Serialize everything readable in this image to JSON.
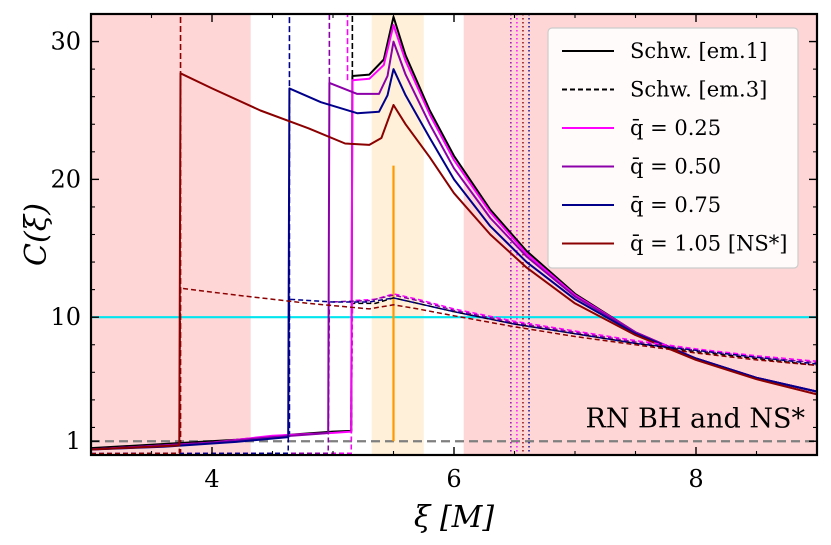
{
  "chart_data": {
    "type": "line",
    "xlabel": "ξ [M]",
    "ylabel": "C(ξ)",
    "xlim": [
      3.0,
      9.0
    ],
    "ylim": [
      0.0,
      32.0
    ],
    "xticks": [
      {
        "v": 4,
        "label": "4"
      },
      {
        "v": 6,
        "label": "6"
      },
      {
        "v": 8,
        "label": "8"
      }
    ],
    "yticks": [
      {
        "v": 1,
        "label": "1"
      },
      {
        "v": 10,
        "label": "10"
      },
      {
        "v": 20,
        "label": "20"
      },
      {
        "v": 30,
        "label": "30"
      }
    ],
    "annotation": "RN BH and NS*",
    "shaded_regions": [
      {
        "x0": 3.0,
        "x1": 4.32,
        "color": "#ffd6d6"
      },
      {
        "x0": 6.08,
        "x1": 9.0,
        "color": "#ffd6d6"
      },
      {
        "x0": 5.32,
        "x1": 5.75,
        "color": "#fff1d9"
      }
    ],
    "reference_lines": [
      {
        "axis": "y",
        "value": 10,
        "color": "#00e5ee",
        "style": "solid"
      },
      {
        "axis": "y",
        "value": 1,
        "color": "#7f7f7f",
        "style": "dashed"
      },
      {
        "axis": "x",
        "value": 5.5,
        "color": "#ff9900",
        "style": "solid",
        "from": 1,
        "to": 21
      }
    ],
    "legend": {
      "position": "top-right",
      "entries": [
        {
          "label": "Schw. [em.1]",
          "color": "#000000",
          "dash": "solid"
        },
        {
          "label": "Schw. [em.3]",
          "color": "#000000",
          "dash": "dashed"
        },
        {
          "label": "q̄ = 0.25",
          "color": "#ff00ff",
          "dash": "solid"
        },
        {
          "label": "q̄ = 0.50",
          "color": "#8b00a8",
          "dash": "solid"
        },
        {
          "label": "q̄ = 0.75",
          "color": "#00008b",
          "dash": "solid"
        },
        {
          "label": "q̄ = 1.05 [NS*]",
          "color": "#8b0000",
          "dash": "solid"
        }
      ]
    },
    "series": [
      {
        "color": "#000000",
        "dash": "solid",
        "points": [
          [
            3.0,
            0.5
          ],
          [
            3.6,
            0.8
          ],
          [
            4.2,
            1.1
          ],
          [
            4.7,
            1.5
          ],
          [
            5.0,
            1.7
          ],
          [
            5.15,
            1.75
          ],
          [
            5.16,
            27.5
          ],
          [
            5.3,
            27.6
          ],
          [
            5.42,
            28.7
          ],
          [
            5.5,
            31.8
          ],
          [
            5.6,
            29.0
          ],
          [
            5.8,
            25.0
          ],
          [
            6.0,
            21.7
          ],
          [
            6.3,
            17.8
          ],
          [
            6.6,
            14.8
          ],
          [
            7.0,
            11.7
          ],
          [
            7.5,
            8.9
          ],
          [
            8.0,
            7.0
          ],
          [
            8.5,
            5.6
          ],
          [
            9.0,
            4.6
          ]
        ]
      },
      {
        "color": "#ff00ff",
        "dash": "solid",
        "points": [
          [
            3.0,
            0.4
          ],
          [
            4.0,
            0.9
          ],
          [
            4.5,
            1.4
          ],
          [
            5.0,
            1.6
          ],
          [
            5.15,
            1.7
          ],
          [
            5.16,
            27.2
          ],
          [
            5.3,
            27.3
          ],
          [
            5.42,
            28.3
          ],
          [
            5.5,
            31.2
          ],
          [
            5.6,
            28.6
          ],
          [
            5.8,
            24.7
          ],
          [
            6.0,
            21.4
          ],
          [
            6.3,
            17.6
          ],
          [
            6.6,
            14.6
          ],
          [
            7.0,
            11.6
          ],
          [
            7.5,
            8.9
          ],
          [
            8.0,
            7.0
          ],
          [
            8.5,
            5.6
          ],
          [
            9.0,
            4.6
          ]
        ]
      },
      {
        "color": "#8b00a8",
        "dash": "solid",
        "points": [
          [
            3.0,
            0.4
          ],
          [
            4.0,
            0.9
          ],
          [
            4.5,
            1.3
          ],
          [
            4.9,
            1.55
          ],
          [
            4.96,
            1.6
          ],
          [
            4.97,
            27.0
          ],
          [
            5.2,
            26.2
          ],
          [
            5.38,
            26.2
          ],
          [
            5.45,
            27.5
          ],
          [
            5.5,
            30.0
          ],
          [
            5.6,
            27.6
          ],
          [
            5.8,
            24.0
          ],
          [
            6.0,
            20.8
          ],
          [
            6.3,
            17.2
          ],
          [
            6.6,
            14.4
          ],
          [
            7.0,
            11.5
          ],
          [
            7.5,
            8.9
          ],
          [
            8.0,
            7.0
          ],
          [
            8.5,
            5.6
          ],
          [
            9.0,
            4.6
          ]
        ]
      },
      {
        "color": "#00008b",
        "dash": "solid",
        "points": [
          [
            3.0,
            0.4
          ],
          [
            3.6,
            0.6
          ],
          [
            4.2,
            0.95
          ],
          [
            4.63,
            1.3
          ],
          [
            4.64,
            26.6
          ],
          [
            4.9,
            25.6
          ],
          [
            5.2,
            24.8
          ],
          [
            5.38,
            24.9
          ],
          [
            5.45,
            26.1
          ],
          [
            5.5,
            28.0
          ],
          [
            5.6,
            26.1
          ],
          [
            5.8,
            23.0
          ],
          [
            6.0,
            20.0
          ],
          [
            6.3,
            16.6
          ],
          [
            6.6,
            14.0
          ],
          [
            7.0,
            11.3
          ],
          [
            7.5,
            8.8
          ],
          [
            8.0,
            7.0
          ],
          [
            8.5,
            5.6
          ],
          [
            9.0,
            4.6
          ]
        ]
      },
      {
        "color": "#8b0000",
        "dash": "solid",
        "points": [
          [
            3.0,
            0.4
          ],
          [
            3.5,
            0.6
          ],
          [
            3.73,
            0.7
          ],
          [
            3.74,
            27.7
          ],
          [
            4.0,
            26.6
          ],
          [
            4.4,
            25.0
          ],
          [
            4.8,
            23.7
          ],
          [
            5.1,
            22.6
          ],
          [
            5.3,
            22.5
          ],
          [
            5.4,
            23.0
          ],
          [
            5.5,
            25.4
          ],
          [
            5.6,
            24.0
          ],
          [
            5.8,
            21.6
          ],
          [
            6.0,
            19.0
          ],
          [
            6.3,
            16.0
          ],
          [
            6.6,
            13.6
          ],
          [
            7.0,
            11.0
          ],
          [
            7.5,
            8.7
          ],
          [
            8.0,
            6.9
          ],
          [
            8.5,
            5.5
          ],
          [
            9.0,
            4.4
          ]
        ]
      },
      {
        "color": "#000000",
        "dash": "dashed",
        "points": [
          [
            3.0,
            0.1
          ],
          [
            5.15,
            0.12
          ],
          [
            5.16,
            11.0
          ],
          [
            5.35,
            11.0
          ],
          [
            5.5,
            11.4
          ],
          [
            5.7,
            11.0
          ],
          [
            6.0,
            10.4
          ],
          [
            6.5,
            9.5
          ],
          [
            7.0,
            8.8
          ],
          [
            7.5,
            8.1
          ],
          [
            8.0,
            7.5
          ],
          [
            8.5,
            7.0
          ],
          [
            9.0,
            6.5
          ]
        ]
      },
      {
        "color": "#ff00ff",
        "dash": "dashed",
        "points": [
          [
            3.0,
            0.1
          ],
          [
            5.15,
            0.12
          ],
          [
            5.16,
            11.2
          ],
          [
            5.35,
            11.3
          ],
          [
            5.5,
            11.7
          ],
          [
            5.7,
            11.3
          ],
          [
            6.0,
            10.6
          ],
          [
            6.5,
            9.7
          ],
          [
            7.0,
            9.0
          ],
          [
            7.5,
            8.3
          ],
          [
            8.0,
            7.7
          ],
          [
            8.5,
            7.2
          ],
          [
            9.0,
            6.8
          ]
        ]
      },
      {
        "color": "#8b00a8",
        "dash": "dashed",
        "points": [
          [
            3.0,
            0.1
          ],
          [
            4.96,
            0.12
          ],
          [
            4.97,
            11.1
          ],
          [
            5.3,
            11.2
          ],
          [
            5.5,
            11.6
          ],
          [
            5.7,
            11.2
          ],
          [
            6.0,
            10.5
          ],
          [
            6.5,
            9.6
          ],
          [
            7.0,
            8.9
          ],
          [
            7.5,
            8.2
          ],
          [
            8.0,
            7.6
          ],
          [
            8.5,
            7.1
          ],
          [
            9.0,
            6.7
          ]
        ]
      },
      {
        "color": "#00008b",
        "dash": "dashed",
        "points": [
          [
            3.0,
            0.1
          ],
          [
            4.63,
            0.12
          ],
          [
            4.64,
            11.3
          ],
          [
            5.0,
            11.1
          ],
          [
            5.3,
            11.1
          ],
          [
            5.5,
            11.4
          ],
          [
            5.7,
            11.0
          ],
          [
            6.0,
            10.4
          ],
          [
            6.5,
            9.5
          ],
          [
            7.0,
            8.8
          ],
          [
            7.5,
            8.1
          ],
          [
            8.0,
            7.6
          ],
          [
            8.5,
            7.1
          ],
          [
            9.0,
            6.6
          ]
        ]
      },
      {
        "color": "#8b0000",
        "dash": "dashed",
        "points": [
          [
            3.0,
            0.1
          ],
          [
            3.73,
            0.12
          ],
          [
            3.74,
            12.1
          ],
          [
            4.2,
            11.6
          ],
          [
            4.8,
            11.0
          ],
          [
            5.3,
            10.6
          ],
          [
            5.5,
            10.9
          ],
          [
            5.7,
            10.6
          ],
          [
            6.0,
            10.1
          ],
          [
            6.5,
            9.3
          ],
          [
            7.0,
            8.6
          ],
          [
            7.5,
            8.0
          ],
          [
            8.0,
            7.4
          ],
          [
            8.5,
            6.9
          ],
          [
            9.0,
            6.5
          ]
        ]
      }
    ],
    "vertical_dashed_lines": [
      {
        "x": 3.74,
        "color": "#8b0000",
        "from": 0.0,
        "to": 32.0
      },
      {
        "x": 4.64,
        "color": "#00008b",
        "from": 1.3,
        "to": 32.0
      },
      {
        "x": 4.97,
        "color": "#8b00a8",
        "from": 27.0,
        "to": 32.0
      },
      {
        "x": 5.12,
        "color": "#ff00ff",
        "from": 27.2,
        "to": 32.0
      },
      {
        "x": 5.16,
        "color": "#000000",
        "from": 27.5,
        "to": 32.0
      }
    ],
    "vertical_dotted_lines": [
      {
        "x": 6.47,
        "color": "#8b00a8"
      },
      {
        "x": 6.52,
        "color": "#ff00ff"
      },
      {
        "x": 6.57,
        "color": "#8b0000"
      },
      {
        "x": 6.62,
        "color": "#00008b"
      }
    ]
  }
}
